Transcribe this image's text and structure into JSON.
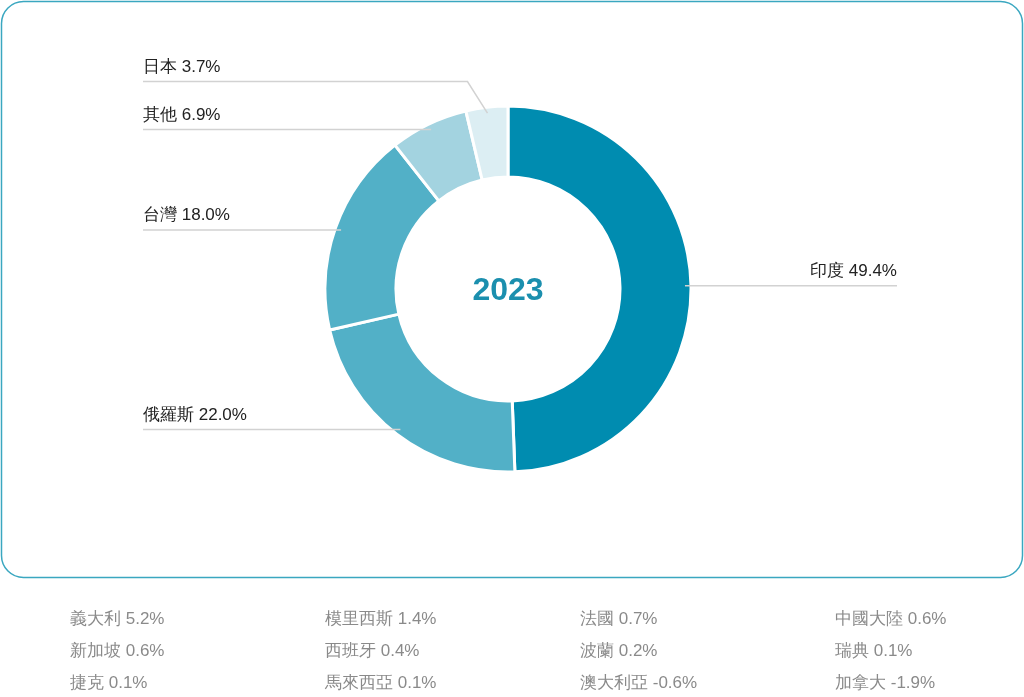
{
  "chart_data": {
    "type": "donut",
    "title": "2023",
    "categories": [
      "印度",
      "俄羅斯",
      "台灣",
      "其他",
      "日本"
    ],
    "values": [
      49.4,
      22.0,
      18.0,
      6.9,
      3.7
    ],
    "value_labels": [
      "49.4%",
      "22.0%",
      "18.0%",
      "6.9%",
      "3.7%"
    ],
    "colors": [
      "#008cb0",
      "#52b0c7",
      "#52b0c7",
      "#a3d3e0",
      "#dceef3"
    ],
    "annotations": [
      "義大利 5.2%",
      "模里西斯 1.4%",
      "法國 0.7%",
      "中國大陸 0.6%",
      "新加坡 0.6%",
      "西班牙 0.4%",
      "波蘭 0.2%",
      "瑞典 0.1%",
      "捷克 0.1%",
      "馬來西亞 0.1%",
      "澳大利亞 -0.6%",
      "加拿大 -1.9%"
    ]
  }
}
